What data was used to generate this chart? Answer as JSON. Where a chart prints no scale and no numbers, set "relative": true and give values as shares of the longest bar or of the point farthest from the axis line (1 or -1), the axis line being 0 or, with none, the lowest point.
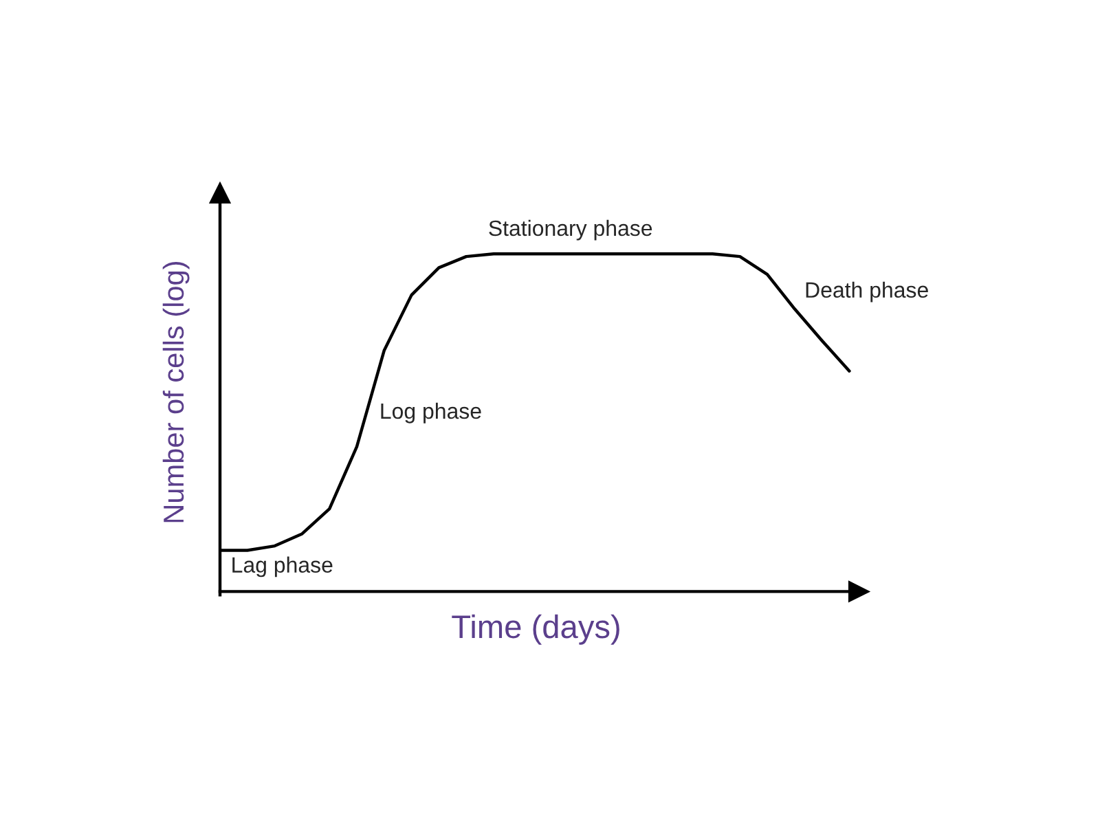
{
  "chart_data": {
    "type": "line",
    "relative": true,
    "xlabel": "Time (days)",
    "ylabel": "Number of cells (log)",
    "categories": [
      null,
      null,
      null,
      null,
      null,
      null,
      null,
      null,
      null,
      null,
      null,
      null,
      null,
      null,
      null,
      null,
      null,
      null,
      null,
      null,
      null,
      null,
      null,
      null
    ],
    "series": [
      {
        "color": "#000000",
        "values": [
          0.122,
          0.122,
          0.135,
          0.171,
          0.245,
          0.429,
          0.714,
          0.878,
          0.959,
          0.992,
          1,
          1,
          1,
          1,
          1,
          1,
          1,
          1,
          1,
          0.992,
          0.939,
          0.837,
          0.743,
          0.653
        ]
      }
    ],
    "annotations": [
      "Lag phase",
      "Log phase",
      "Stationary phase",
      "Death phase"
    ],
    "legend": false,
    "marker": "none",
    "line_style": "solid"
  }
}
